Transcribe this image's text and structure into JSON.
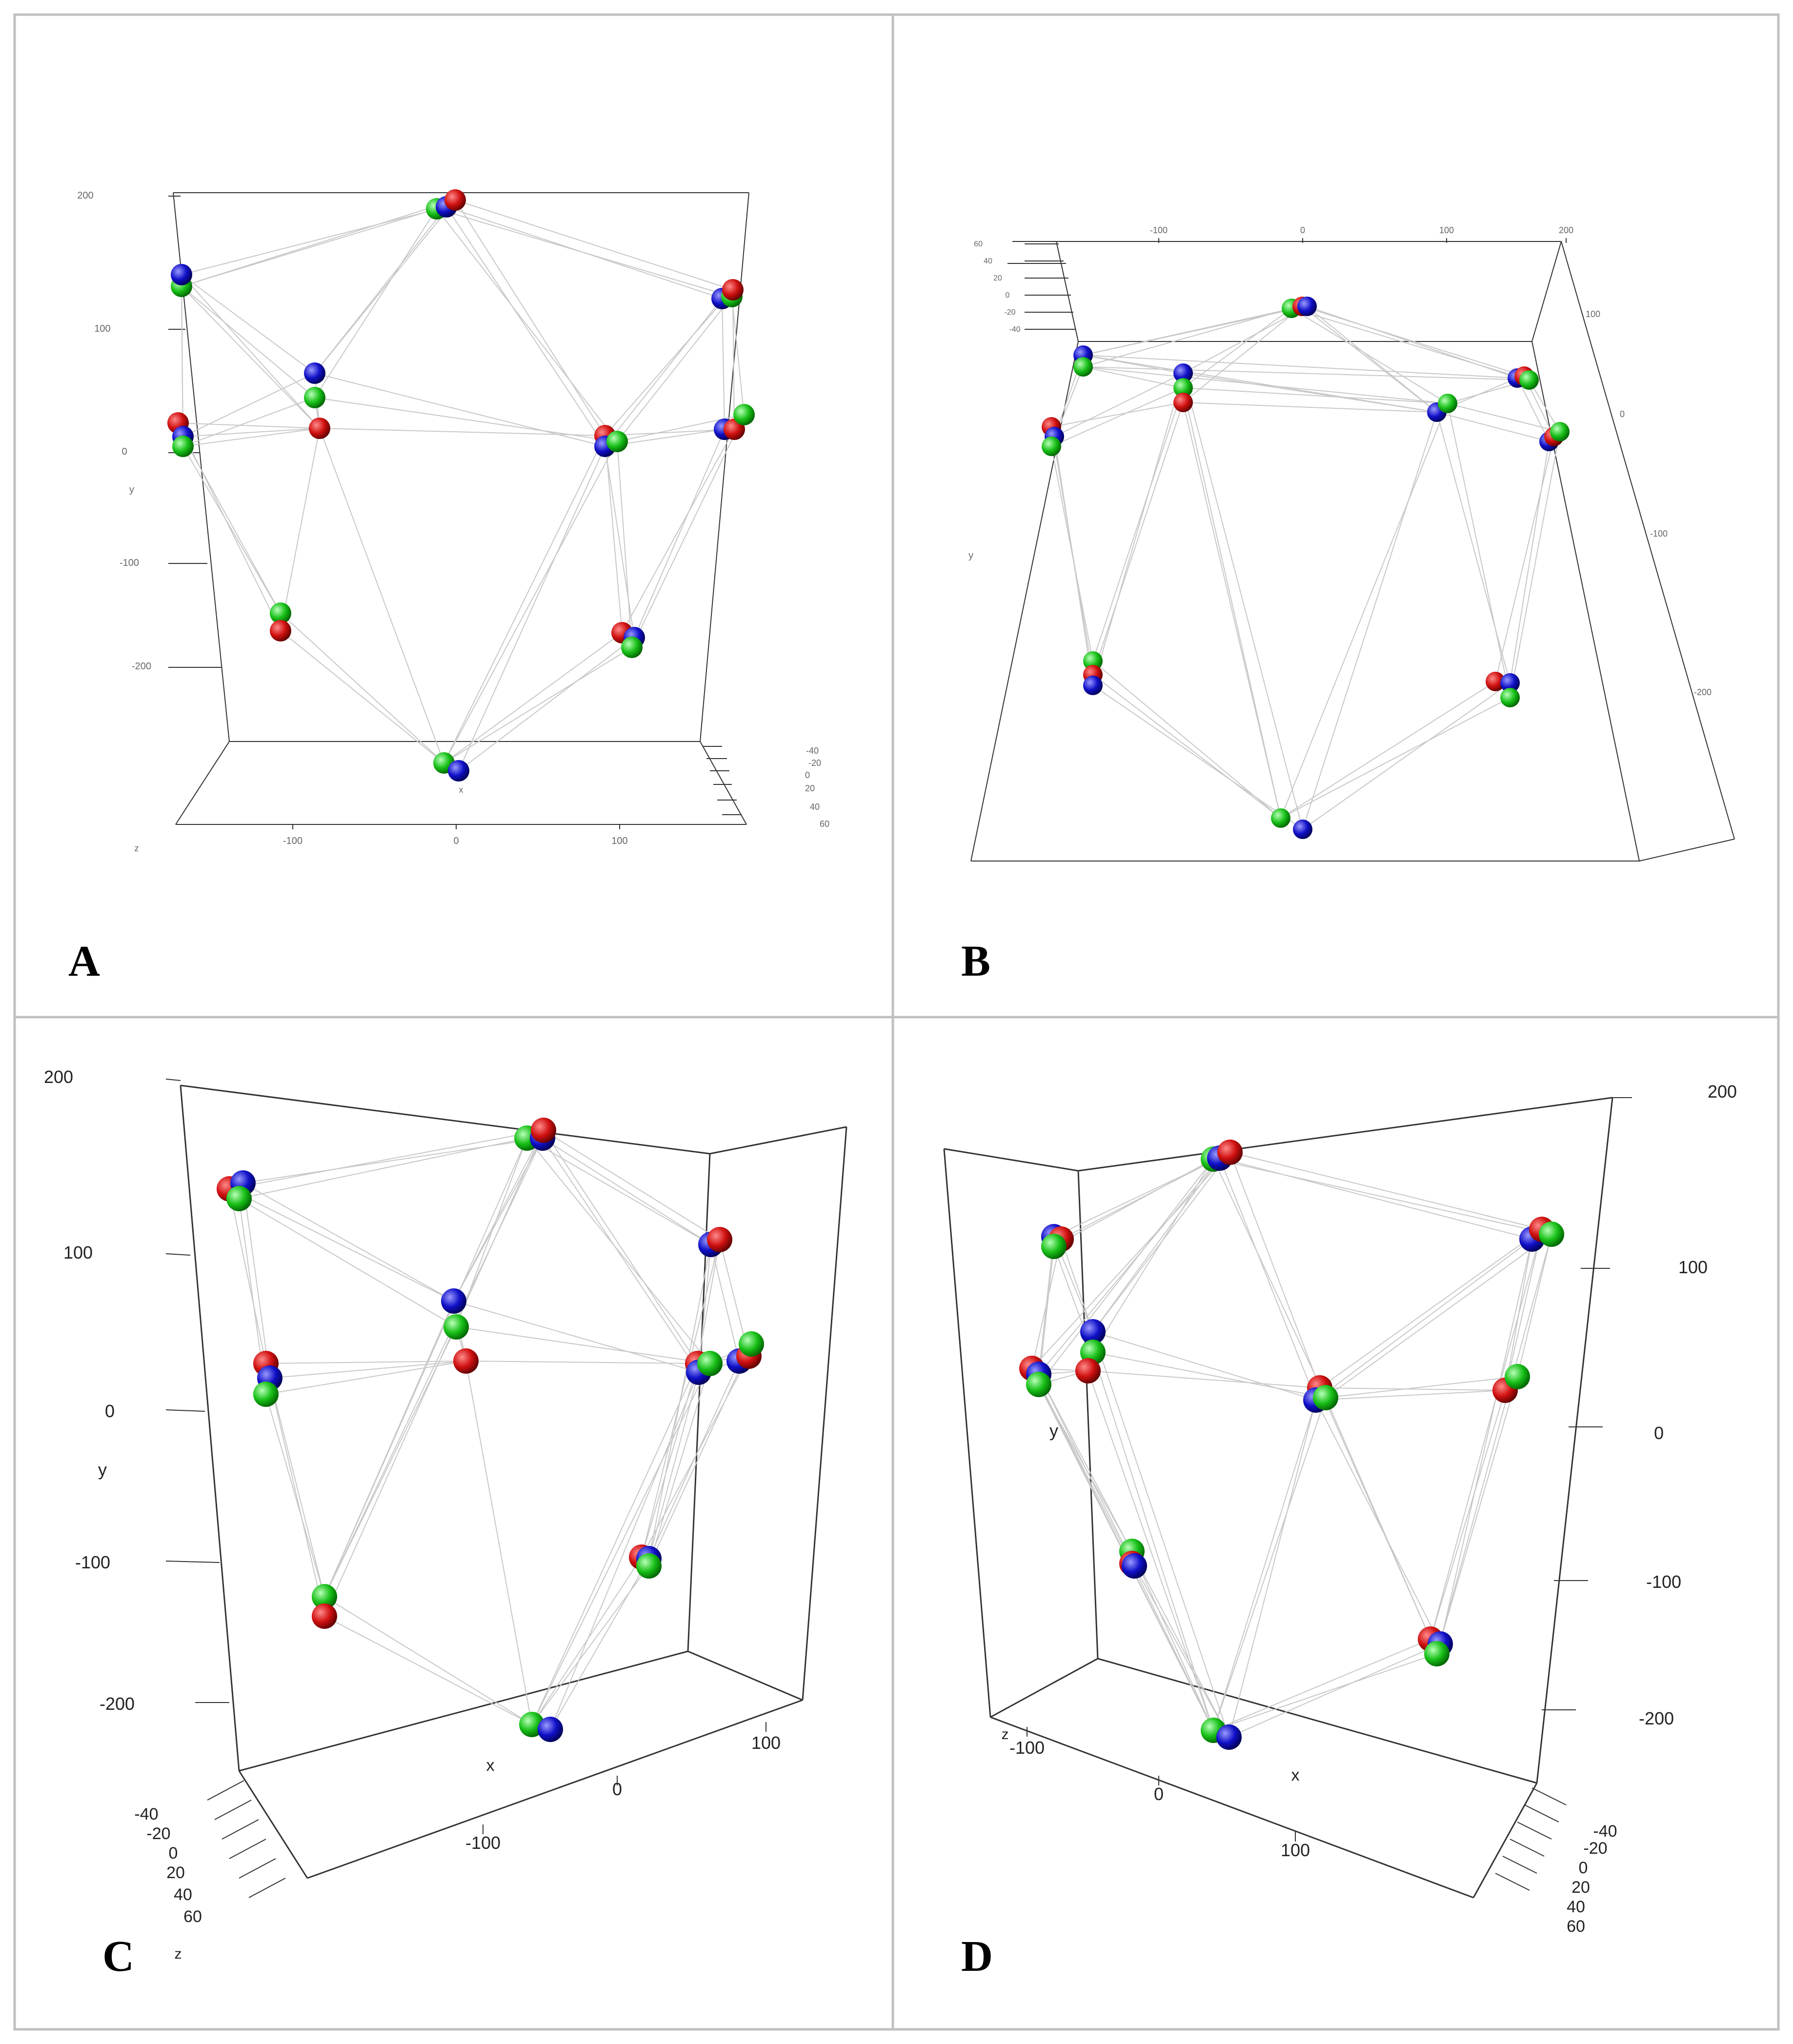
{
  "panels": [
    {
      "id": "A",
      "label": "A",
      "y_ticks": [
        "200",
        "100",
        "0",
        "-100",
        "-200"
      ],
      "y_label": "y",
      "x_ticks": [
        "-100",
        "0",
        "100"
      ],
      "x_label": "x",
      "z_ticks": [
        "-40",
        "-20",
        "0",
        "20",
        "40",
        "60"
      ],
      "z_label": "z"
    },
    {
      "id": "B",
      "label": "B",
      "x_ticks": [
        "-100",
        "0",
        "100",
        "200"
      ],
      "y_ticks": [
        "100",
        "0",
        "-100",
        "-200"
      ],
      "y_label": "y",
      "z_ticks": [
        "60",
        "40",
        "20",
        "0",
        "-20",
        "-40"
      ]
    },
    {
      "id": "C",
      "label": "C",
      "y_ticks": [
        "200",
        "100",
        "0",
        "-100",
        "-200"
      ],
      "y_label": "y",
      "x_ticks": [
        "-100",
        "0",
        "100"
      ],
      "x_label": "x",
      "z_ticks": [
        "-40",
        "-20",
        "0",
        "20",
        "40",
        "60"
      ],
      "z_label": "z"
    },
    {
      "id": "D",
      "label": "D",
      "y_ticks": [
        "200",
        "100",
        "0",
        "-100",
        "-200"
      ],
      "y_label": "y",
      "x_ticks": [
        "-100",
        "0",
        "100"
      ],
      "x_label": "x",
      "z_ticks": [
        "-40",
        "-20",
        "0",
        "20",
        "40",
        "60"
      ],
      "z_label": "z"
    }
  ],
  "colors": {
    "red": "#d01010",
    "green": "#18c018",
    "blue": "#1010c8",
    "wire": "#c8c8c8",
    "box": "#333333"
  }
}
